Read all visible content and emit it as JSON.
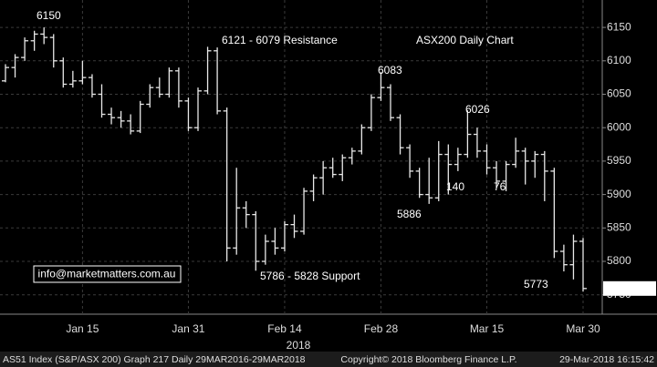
{
  "chart_data": {
    "type": "ohlc",
    "categories": [
      null,
      null,
      null,
      null,
      null,
      null,
      null,
      null,
      "Jan 15",
      null,
      null,
      null,
      null,
      null,
      null,
      null,
      null,
      null,
      null,
      "Jan 31",
      null,
      null,
      null,
      null,
      null,
      null,
      null,
      null,
      null,
      "Feb 14",
      null,
      null,
      null,
      null,
      null,
      null,
      null,
      null,
      null,
      "Feb 28",
      null,
      null,
      null,
      null,
      null,
      null,
      null,
      null,
      null,
      null,
      "Mar 15",
      null,
      null,
      null,
      null,
      null,
      null,
      null,
      null,
      null,
      "Mar 30"
    ],
    "open": [
      6070,
      6090,
      6105,
      6130,
      6140,
      6135,
      6100,
      6065,
      6070,
      6075,
      6050,
      6020,
      6015,
      6010,
      5995,
      6035,
      6060,
      6050,
      6085,
      6040,
      6000,
      6055,
      6115,
      6025,
      5820,
      5880,
      5870,
      5800,
      5830,
      5820,
      5855,
      5845,
      5905,
      5925,
      5940,
      5930,
      5955,
      5965,
      6000,
      6045,
      6060,
      6015,
      5970,
      5935,
      5900,
      5895,
      5960,
      5945,
      5960,
      5990,
      5965,
      5940,
      5920,
      5945,
      5965,
      5950,
      5960,
      5935,
      5815,
      5795,
      5830
    ],
    "high": [
      6095,
      6110,
      6135,
      6145,
      6150,
      6140,
      6105,
      6085,
      6100,
      6080,
      6065,
      6030,
      6025,
      6020,
      6040,
      6065,
      6075,
      6090,
      6090,
      6045,
      6060,
      6121,
      6120,
      6030,
      5940,
      5890,
      5875,
      5840,
      5850,
      5860,
      5870,
      5910,
      5930,
      5950,
      5955,
      5960,
      5970,
      6005,
      6050,
      6083,
      6065,
      6020,
      5975,
      5940,
      5955,
      5980,
      5975,
      5970,
      6026,
      6000,
      5975,
      5950,
      5950,
      5985,
      5970,
      5965,
      5965,
      5940,
      5825,
      5840,
      5835
    ],
    "low": [
      6068,
      6075,
      6100,
      6115,
      6125,
      6090,
      6060,
      6060,
      6065,
      6045,
      6015,
      6005,
      6000,
      5990,
      5992,
      6030,
      6045,
      6045,
      6030,
      5995,
      5995,
      6050,
      6020,
      5800,
      5810,
      5850,
      5786,
      5795,
      5810,
      5815,
      5835,
      5840,
      5890,
      5900,
      5925,
      5920,
      5945,
      5960,
      5995,
      6040,
      6010,
      5960,
      5925,
      5895,
      5886,
      5890,
      5900,
      5935,
      5955,
      5955,
      5930,
      5910,
      5905,
      5940,
      5915,
      5925,
      5890,
      5805,
      5785,
      5773,
      5755
    ],
    "close": [
      6090,
      6105,
      6130,
      6140,
      6135,
      6100,
      6065,
      6070,
      6075,
      6050,
      6020,
      6015,
      6010,
      5995,
      6035,
      6060,
      6050,
      6085,
      6040,
      6000,
      6055,
      6115,
      6025,
      5820,
      5880,
      5870,
      5800,
      5830,
      5820,
      5855,
      5845,
      5905,
      5925,
      5940,
      5930,
      5955,
      5965,
      6000,
      6045,
      6060,
      6015,
      5970,
      5935,
      5900,
      5895,
      5960,
      5945,
      5960,
      5990,
      5965,
      5940,
      5920,
      5945,
      5965,
      5950,
      5960,
      5935,
      5815,
      5795,
      5830,
      5759.398
    ],
    "color": "#e8e8e8",
    "ylim": [
      5721,
      6191
    ],
    "yticks": [
      5750,
      5800,
      5850,
      5900,
      5950,
      6000,
      6050,
      6100,
      6150
    ],
    "grid": true,
    "x_label": "2018",
    "annotations": [
      {
        "text": "6150",
        "color": "#ffffff"
      },
      {
        "text": "6121 - 6079 Resistance",
        "color": "#ff2a2a"
      },
      {
        "text": "ASX200 Daily Chart",
        "color": "#7fe87f"
      },
      {
        "text": "6083",
        "color": "#ffffff"
      },
      {
        "text": "6026",
        "color": "#ffffff"
      },
      {
        "text": "140",
        "color": "#ffff33"
      },
      {
        "text": "76",
        "color": "#ffff33"
      },
      {
        "text": "5886",
        "color": "#ffffff"
      },
      {
        "text": "5786 - 5828 Support",
        "color": "#33e0ff"
      },
      {
        "text": "5773",
        "color": "#ffffff"
      }
    ]
  },
  "contact": "info@marketmatters.com.au",
  "footer": {
    "left": "AS51 Index (S&P/ASX 200) Graph 217  Daily 29MAR2016-29MAR2018",
    "center": "Copyright© 2018 Bloomberg Finance L.P.",
    "right": "29-Mar-2018 16:15:42"
  }
}
